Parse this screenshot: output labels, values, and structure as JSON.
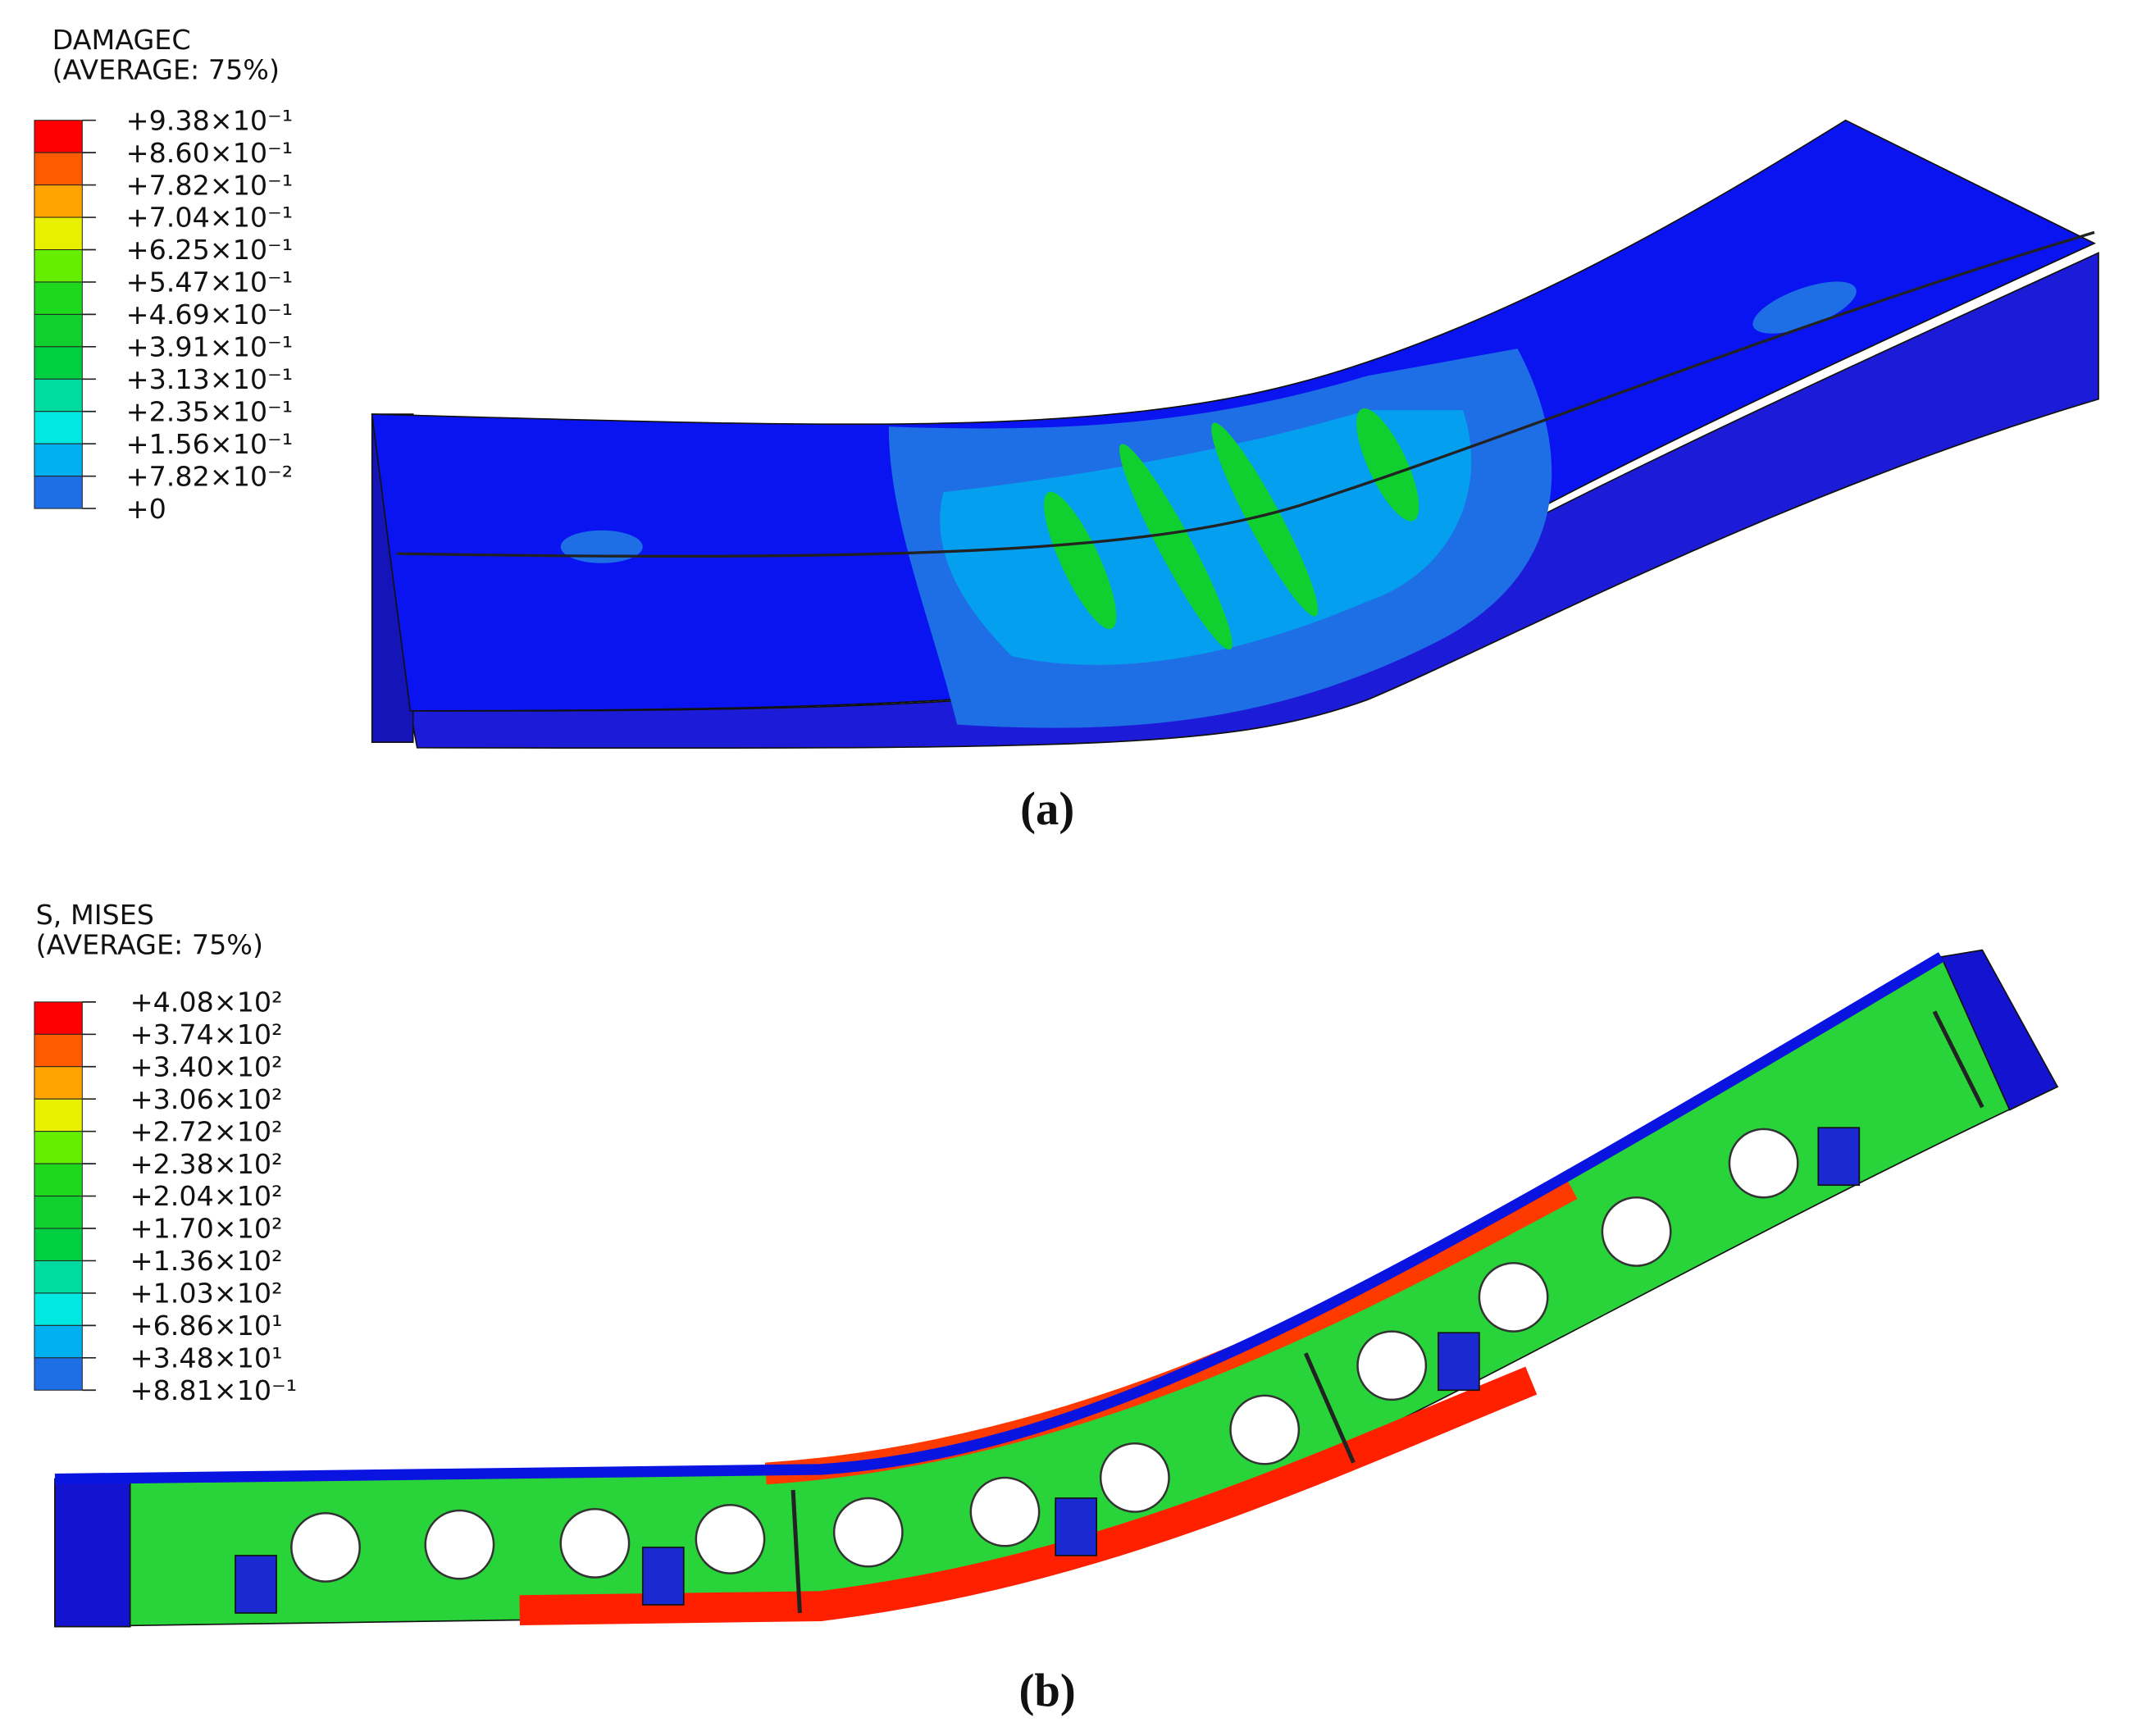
{
  "panels": [
    {
      "legend": {
        "title": [
          "DAMAGEC",
          "(AVERAGE: 75%)"
        ],
        "labels": [
          "+9.38×10⁻¹",
          "+8.60×10⁻¹",
          "+7.82×10⁻¹",
          "+7.04×10⁻¹",
          "+6.25×10⁻¹",
          "+5.47×10⁻¹",
          "+4.69×10⁻¹",
          "+3.91×10⁻¹",
          "+3.13×10⁻¹",
          "+2.35×10⁻¹",
          "+1.56×10⁻¹",
          "+7.82×10⁻²",
          "+0"
        ],
        "colors": [
          "#ff0000",
          "#ff5a00",
          "#ffa400",
          "#e8f000",
          "#66ee00",
          "#1ed81e",
          "#10d030",
          "#00d040",
          "#00dca0",
          "#00e8e0",
          "#00b0f0",
          "#1e6ee6"
        ]
      },
      "caption": "(a)"
    },
    {
      "legend": {
        "title": [
          "S, MISES",
          "(AVERAGE: 75%)"
        ],
        "labels": [
          "+4.08×10²",
          "+3.74×10²",
          "+3.40×10²",
          "+3.06×10²",
          "+2.72×10²",
          "+2.38×10²",
          "+2.04×10²",
          "+1.70×10²",
          "+1.36×10²",
          "+1.03×10²",
          "+6.86×10¹",
          "+3.48×10¹",
          "+8.81×10⁻¹"
        ],
        "colors": [
          "#ff0000",
          "#ff5a00",
          "#ffa400",
          "#e8f000",
          "#66ee00",
          "#1ed81e",
          "#10d030",
          "#00d040",
          "#00dca0",
          "#00e8e0",
          "#00b0f0",
          "#1e6ee6"
        ]
      },
      "caption": "(b)"
    }
  ]
}
